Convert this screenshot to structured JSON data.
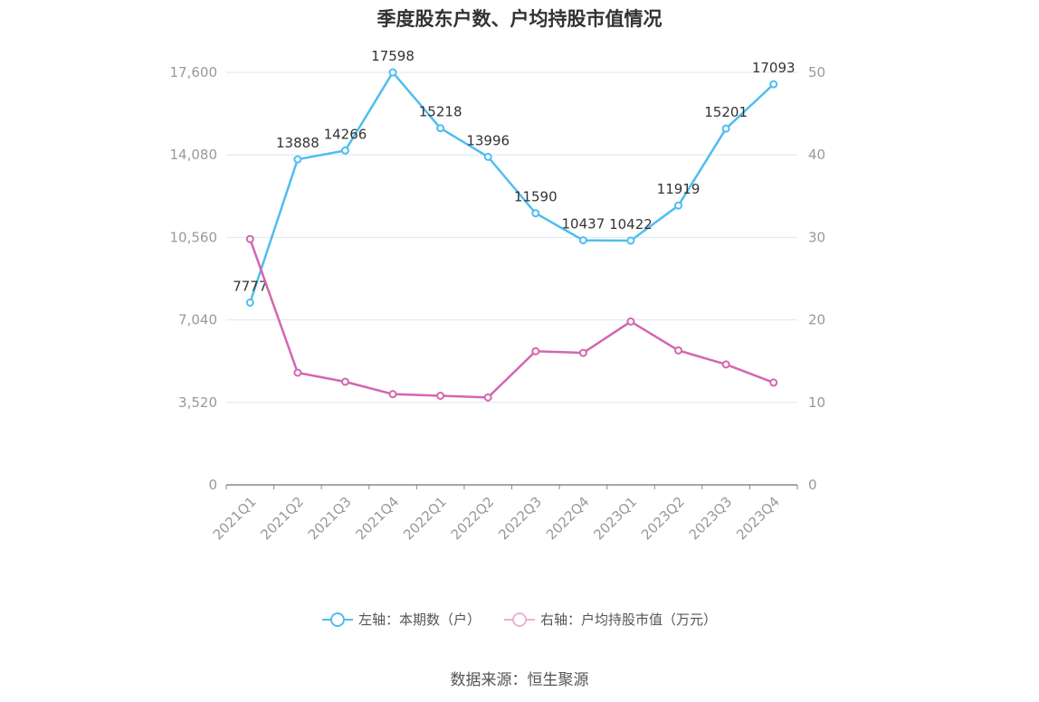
{
  "title": "季度股东户数、户均持股市值情况",
  "source": "数据来源：恒生聚源",
  "colors": {
    "left_series": "#4fbdf0",
    "right_series": "#d466b0",
    "grid": "#dce6f0",
    "axis_text": "#999999"
  },
  "legend": {
    "left_label": "左轴：本期数（户）",
    "right_label": "右轴：户均持股市值（万元）"
  },
  "chart_data": {
    "type": "line",
    "categories": [
      "2021Q1",
      "2021Q2",
      "2021Q3",
      "2021Q4",
      "2022Q1",
      "2022Q2",
      "2022Q3",
      "2022Q4",
      "2023Q1",
      "2023Q2",
      "2023Q3",
      "2023Q4"
    ],
    "left_axis": {
      "min": 0,
      "max": 17600,
      "ticks": [
        0,
        3520,
        7040,
        10560,
        14080,
        17600
      ],
      "tick_labels": [
        "0",
        "3,520",
        "7,040",
        "10,560",
        "14,080",
        "17,600"
      ]
    },
    "right_axis": {
      "min": 0,
      "max": 50,
      "ticks": [
        0,
        10,
        20,
        30,
        40,
        50
      ],
      "tick_labels": [
        "0",
        "10",
        "20",
        "30",
        "40",
        "50"
      ]
    },
    "series": [
      {
        "name": "左轴：本期数（户）",
        "axis": "left",
        "color": "#4fbdf0",
        "values": [
          7777,
          13888,
          14266,
          17598,
          15218,
          13996,
          11590,
          10437,
          10422,
          11919,
          15201,
          17093
        ],
        "labels": [
          "7777",
          "13888",
          "14266",
          "17598",
          "15218",
          "13996",
          "11590",
          "10437",
          "10422",
          "11919",
          "15201",
          "17093"
        ]
      },
      {
        "name": "右轴：户均持股市值（万元）",
        "axis": "right",
        "color": "#d466b0",
        "values": [
          29.8,
          13.6,
          12.5,
          11.0,
          10.8,
          10.6,
          16.2,
          16.0,
          19.8,
          16.3,
          14.6,
          12.4
        ]
      }
    ],
    "grid": true,
    "legend_position": "bottom"
  }
}
